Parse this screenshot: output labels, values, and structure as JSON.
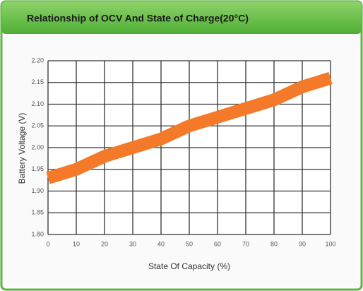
{
  "chart_data": {
    "type": "line",
    "title": "Relationship of OCV And State of Charge(20°C)",
    "xlabel": "State Of Capacity (%)",
    "ylabel": "Battery Voltage (V)",
    "x": [
      0,
      10,
      20,
      30,
      40,
      50,
      60,
      70,
      80,
      90,
      100
    ],
    "values": [
      1.93,
      1.95,
      1.98,
      2.0,
      2.02,
      2.05,
      2.07,
      2.09,
      2.11,
      2.14,
      2.16
    ],
    "color": "#f47a2a",
    "xlim": [
      0,
      100
    ],
    "xticks": [
      0,
      10,
      20,
      30,
      40,
      50,
      60,
      70,
      80,
      90,
      100
    ],
    "ylim": [
      1.8,
      2.2
    ],
    "yticks": [
      {
        "value": 1.8,
        "label": "1.80"
      },
      {
        "value": 1.85,
        "label": "1.85"
      },
      {
        "value": 1.9,
        "label": "1.90"
      },
      {
        "value": 1.95,
        "label": "1.95"
      },
      {
        "value": 2.0,
        "label": "2.00"
      },
      {
        "value": 2.05,
        "label": "2.05"
      },
      {
        "value": 2.1,
        "label": "2.10"
      },
      {
        "value": 2.15,
        "label": "2.15"
      },
      {
        "value": 2.2,
        "label": "2.20"
      }
    ],
    "grid": true
  }
}
